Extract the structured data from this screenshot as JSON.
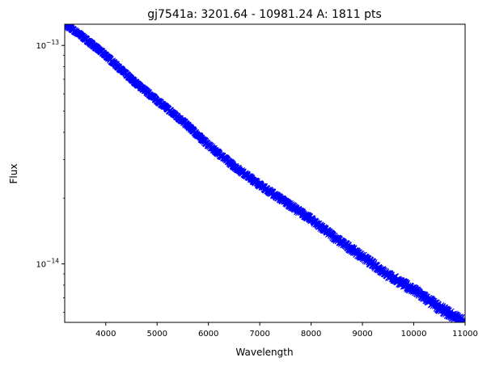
{
  "chart_data": {
    "type": "scatter",
    "title": "gj7541a: 3201.64 - 10981.24 A: 1811 pts",
    "xlabel": "Wavelength",
    "ylabel": "Flux",
    "xlim": [
      3200,
      11000
    ],
    "ylim": [
      5.4e-15,
      1.25e-13
    ],
    "yscale": "log",
    "grid": false,
    "marker": "x",
    "marker_color": "#0000ff",
    "x_ticks": [
      4000,
      5000,
      6000,
      7000,
      8000,
      9000,
      10000,
      11000
    ],
    "x_tick_labels": [
      "4000",
      "5000",
      "6000",
      "7000",
      "8000",
      "9000",
      "10000",
      "11000"
    ],
    "y_major_ticks": [
      1e-14,
      1e-13
    ],
    "y_major_tick_labels": [
      {
        "base": "10",
        "exp": "−14"
      },
      {
        "base": "10",
        "exp": "−13"
      }
    ],
    "y_minor_ticks": [
      6e-15,
      7e-15,
      8e-15,
      9e-15,
      2e-14,
      3e-14,
      4e-14,
      5e-14,
      6e-14,
      7e-14,
      8e-14,
      9e-14
    ],
    "series": [
      {
        "x": [
          3200,
          3500,
          4000,
          4500,
          5000,
          5500,
          6000,
          6500,
          7000,
          7500,
          8000,
          8500,
          9000,
          9500,
          10000,
          10500,
          10981
        ],
        "y": [
          1.25e-13,
          1.12e-13,
          9e-14,
          7e-14,
          5.6e-14,
          4.5e-14,
          3.5e-14,
          2.8e-14,
          2.3e-14,
          1.92e-14,
          1.6e-14,
          1.3e-14,
          1.08e-14,
          8.9e-15,
          7.6e-15,
          6.3e-15,
          5.4e-15
        ]
      }
    ],
    "n_points": 1811
  }
}
